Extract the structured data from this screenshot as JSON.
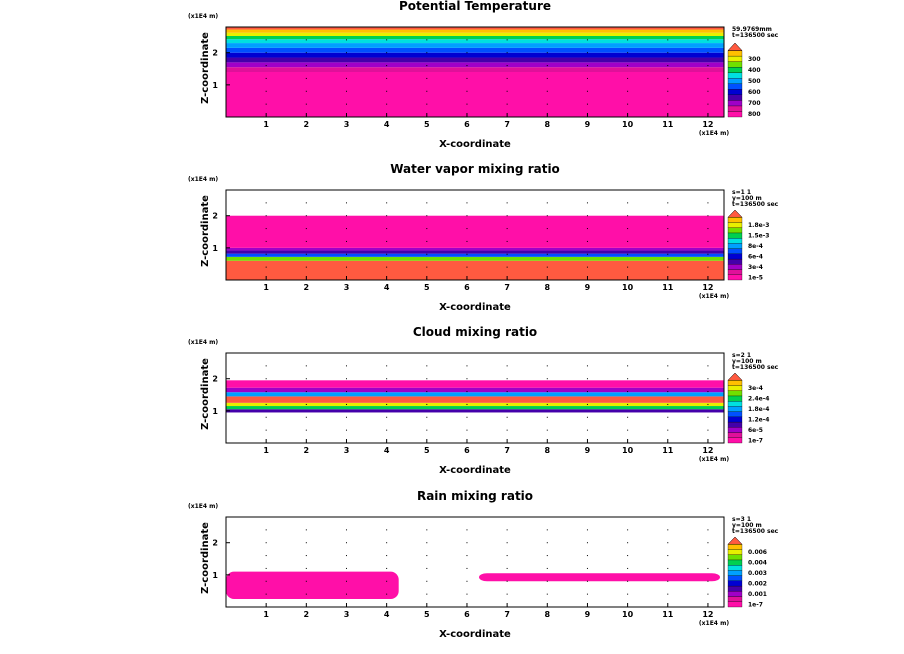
{
  "chart_data": [
    {
      "type": "heatmap",
      "title": "Potential Temperature",
      "xlabel": "X-coordinate",
      "ylabel": "Z-coordinate",
      "x_scale_label": "(x1E4 m)",
      "z_scale_label": "(x1E4 m)",
      "xlim": [
        0,
        12.4
      ],
      "ylim": [
        0,
        2.8
      ],
      "x_ticks": [
        "1",
        "2",
        "3",
        "4",
        "5",
        "6",
        "7",
        "8",
        "9",
        "10",
        "11",
        "12"
      ],
      "y_ticks": [
        "1",
        "2"
      ],
      "info": [
        "59.9769mm",
        "t=136500 sec"
      ],
      "legend_labels": [
        "300",
        "400",
        "500",
        "600",
        "700",
        "800"
      ],
      "palette": [
        "#ff0fa8",
        "#e0109a",
        "#a000c8",
        "#4400aa",
        "#0000d2",
        "#0050ff",
        "#00a0ff",
        "#00e0e0",
        "#00d050",
        "#70e000",
        "#e8f000",
        "#ffc000",
        "#ff5a40"
      ],
      "layers": [
        {
          "z": [
            0.0,
            1.4
          ],
          "level": 0
        },
        {
          "z": [
            1.4,
            1.55
          ],
          "level": 1
        },
        {
          "z": [
            1.55,
            1.7
          ],
          "level": 2
        },
        {
          "z": [
            1.7,
            1.85
          ],
          "level": 3
        },
        {
          "z": [
            1.85,
            2.0
          ],
          "level": 4
        },
        {
          "z": [
            2.0,
            2.15
          ],
          "level": 5
        },
        {
          "z": [
            2.15,
            2.3
          ],
          "level": 6
        },
        {
          "z": [
            2.3,
            2.42
          ],
          "level": 7
        },
        {
          "z": [
            2.42,
            2.52
          ],
          "level": 8
        },
        {
          "z": [
            2.52,
            2.62
          ],
          "level": 10
        },
        {
          "z": [
            2.62,
            2.72
          ],
          "level": 11
        },
        {
          "z": [
            2.72,
            2.8
          ],
          "level": 12
        }
      ]
    },
    {
      "type": "heatmap",
      "title": "Water vapor mixing ratio",
      "xlabel": "X-coordinate",
      "ylabel": "Z-coordinate",
      "x_scale_label": "(x1E4 m)",
      "z_scale_label": "(x1E4 m)",
      "xlim": [
        0,
        12.4
      ],
      "ylim": [
        0,
        2.8
      ],
      "x_ticks": [
        "1",
        "2",
        "3",
        "4",
        "5",
        "6",
        "7",
        "8",
        "9",
        "10",
        "11",
        "12"
      ],
      "y_ticks": [
        "1",
        "2"
      ],
      "info": [
        "s=1 1",
        "y=100 m",
        "t=136500 sec"
      ],
      "legend_labels": [
        "1.8e-3",
        "1.5e-3",
        "8e-4",
        "6e-4",
        "3e-4",
        "1e-5"
      ],
      "palette": [
        "#ff0fa8",
        "#e0109a",
        "#a000c8",
        "#4400aa",
        "#0000d2",
        "#0050ff",
        "#00a0ff",
        "#00e0e0",
        "#00d050",
        "#70e000",
        "#e8f000",
        "#ffc000",
        "#ff5a40"
      ],
      "layers": [
        {
          "z": [
            0.0,
            0.6
          ],
          "level": 12
        },
        {
          "z": [
            0.6,
            0.72
          ],
          "level": 9
        },
        {
          "z": [
            0.72,
            0.82
          ],
          "level": 5
        },
        {
          "z": [
            0.82,
            0.92
          ],
          "level": 3
        },
        {
          "z": [
            0.92,
            1.0
          ],
          "level": 2
        },
        {
          "z": [
            1.0,
            2.0
          ],
          "level": 0
        }
      ]
    },
    {
      "type": "heatmap",
      "title": "Cloud mixing ratio",
      "xlabel": "X-coordinate",
      "ylabel": "Z-coordinate",
      "x_scale_label": "(x1E4 m)",
      "z_scale_label": "(x1E4 m)",
      "xlim": [
        0,
        12.4
      ],
      "ylim": [
        0,
        2.8
      ],
      "x_ticks": [
        "1",
        "2",
        "3",
        "4",
        "5",
        "6",
        "7",
        "8",
        "9",
        "10",
        "11",
        "12"
      ],
      "y_ticks": [
        "1",
        "2"
      ],
      "info": [
        "s=2 1",
        "y=100 m",
        "t=136500 sec"
      ],
      "legend_labels": [
        "3e-4",
        "2.4e-4",
        "1.8e-4",
        "1.2e-4",
        "6e-5",
        "1e-7"
      ],
      "palette": [
        "#ff0fa8",
        "#e0109a",
        "#a000c8",
        "#4400aa",
        "#0000d2",
        "#0050ff",
        "#00a0ff",
        "#00e0e0",
        "#00d050",
        "#70e000",
        "#e8f000",
        "#ffc000",
        "#ff5a40"
      ],
      "layers": [
        {
          "z": [
            0.95,
            1.05
          ],
          "level": 3
        },
        {
          "z": [
            1.05,
            1.15
          ],
          "level": 8
        },
        {
          "z": [
            1.15,
            1.25
          ],
          "level": 10
        },
        {
          "z": [
            1.25,
            1.45
          ],
          "level": 12
        },
        {
          "z": [
            1.45,
            1.58
          ],
          "level": 6
        },
        {
          "z": [
            1.58,
            1.72
          ],
          "level": 2
        },
        {
          "z": [
            1.72,
            1.95
          ],
          "level": 0
        }
      ]
    },
    {
      "type": "heatmap",
      "title": "Rain mixing ratio",
      "xlabel": "X-coordinate",
      "ylabel": "Z-coordinate",
      "x_scale_label": "(x1E4 m)",
      "z_scale_label": "(x1E4 m)",
      "xlim": [
        0,
        12.4
      ],
      "ylim": [
        0,
        2.8
      ],
      "x_ticks": [
        "1",
        "2",
        "3",
        "4",
        "5",
        "6",
        "7",
        "8",
        "9",
        "10",
        "11",
        "12"
      ],
      "y_ticks": [
        "1",
        "2"
      ],
      "info": [
        "s=3 1",
        "y=100 m",
        "t=136500 sec"
      ],
      "legend_labels": [
        "0.006",
        "0.004",
        "0.003",
        "0.002",
        "0.001",
        "1e-7"
      ],
      "palette": [
        "#ff0fa8",
        "#e0109a",
        "#a000c8",
        "#4400aa",
        "#0000d2",
        "#0050ff",
        "#00a0ff",
        "#00e0e0",
        "#00d050",
        "#70e000",
        "#e8f000",
        "#ffc000",
        "#ff5a40"
      ],
      "regions": [
        {
          "x": [
            0.0,
            4.3
          ],
          "z": [
            0.25,
            1.1
          ],
          "level": 0
        },
        {
          "x": [
            6.3,
            12.3
          ],
          "z": [
            0.8,
            1.05
          ],
          "level": 0
        }
      ]
    }
  ]
}
